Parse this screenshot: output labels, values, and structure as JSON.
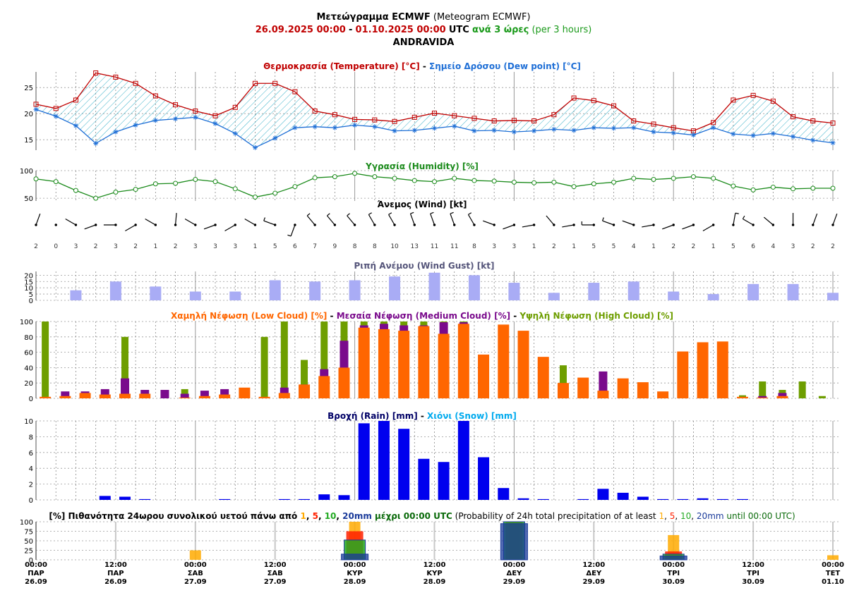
{
  "header": {
    "title_bold": "Μετεώγραμμα ECMWF",
    "title_norm": "(Meteogram ECMWF)",
    "start": "26.09.2025 00:00",
    "dash": "-",
    "end": "01.10.2025 00:00",
    "utc": "UTC",
    "step_bold": "ανά 3 ώρες",
    "step_norm": "(per 3 hours)",
    "location": "ANDRAVIDA"
  },
  "colors": {
    "temp": "#c00000",
    "dew": "#1f6fd6",
    "hum": "#1a8a1a",
    "gust": "#a9acf5",
    "low": "#ff6600",
    "mid": "#7a0a8c",
    "high": "#6e9e00",
    "rain": "#0000ee",
    "snow": "#00aaee",
    "p1": "#ffaa00",
    "p5": "#ff2000",
    "p10": "#22aa22",
    "p20": "#1a3a9a",
    "navy": "#000066"
  },
  "titles": {
    "temp_a": "Θερμοκρασία (Temperature) [°C]",
    "temp_sep": " - ",
    "temp_b": "Σημείο Δρόσου (Dew point) [°C]",
    "hum": "Υγρασία (Humidity) [%]",
    "wind": "Άνεμος (Wind) [kt]",
    "gust": "Ριπή Ανέμου (Wind Gust) [kt]",
    "cloud_low": "Χαμηλή Νέφωση (Low Cloud) [%]",
    "cloud_mid": "Μεσαία Νέφωση (Medium Cloud) [%]",
    "cloud_high": "Υψηλή Νέφωση (High Cloud) [%]",
    "sep": " - ",
    "rain": "Βροχή (Rain) [mm]",
    "snow": "Χιόνι (Snow) [mm]",
    "prob_a": "[%] Πιθανότητα 24ωρου συνολικού υετού πάνω από ",
    "prob_1": "1",
    "prob_c": ", ",
    "prob_5": "5",
    "prob_10": "10",
    "prob_20": "20mm",
    "prob_b": " μέχρι 00:00 UTC",
    "prob_en": " (Probability of 24h total precipitation of at least ",
    "prob_en2": " until 00:00 UTC)"
  },
  "chart_data": [
    {
      "type": "line",
      "name": "temperature",
      "ylim": [
        13,
        28
      ],
      "yticks": [
        15,
        20,
        25
      ],
      "series": [
        {
          "name": "Θερμοκρασία (Temperature)",
          "values": [
            21.8,
            21.0,
            22.6,
            27.8,
            27.0,
            25.8,
            23.4,
            21.7,
            20.5,
            19.6,
            21.2,
            25.8,
            25.8,
            24.2,
            20.5,
            19.8,
            18.9,
            18.8,
            18.5,
            19.3,
            20.1,
            19.6,
            19.1,
            18.6,
            18.7,
            18.6,
            19.8,
            23.0,
            22.5,
            21.5,
            18.6,
            18.0,
            17.3,
            16.7,
            18.3,
            22.6,
            23.5,
            22.4,
            19.4,
            18.6,
            18.2
          ]
        },
        {
          "name": "Σημείο Δρόσου (Dew point)",
          "values": [
            20.8,
            19.5,
            17.7,
            14.3,
            16.5,
            17.8,
            18.7,
            19.0,
            19.3,
            18.1,
            16.2,
            13.5,
            15.3,
            17.3,
            17.5,
            17.3,
            17.8,
            17.5,
            16.7,
            16.8,
            17.2,
            17.6,
            16.7,
            16.8,
            16.5,
            16.7,
            17.0,
            16.8,
            17.3,
            17.2,
            17.3,
            16.5,
            16.3,
            15.9,
            17.3,
            16.1,
            15.8,
            16.2,
            15.6,
            14.9,
            14.4
          ]
        }
      ]
    },
    {
      "type": "line",
      "name": "humidity",
      "ylim": [
        45,
        100
      ],
      "yticks": [
        50,
        100
      ],
      "series": [
        {
          "name": "Υγρασία (Humidity)",
          "values": [
            85,
            80,
            64,
            50,
            61,
            66,
            76,
            77,
            84,
            80,
            67,
            52,
            59,
            71,
            87,
            89,
            95,
            89,
            86,
            82,
            80,
            86,
            82,
            81,
            79,
            78,
            79,
            71,
            76,
            79,
            86,
            84,
            86,
            89,
            86,
            72,
            65,
            70,
            67,
            68,
            68
          ]
        }
      ]
    },
    {
      "type": "table",
      "name": "wind_speed_kt",
      "values": [
        2,
        0,
        3,
        2,
        3,
        2,
        1,
        2,
        3,
        3,
        3,
        1,
        5,
        6,
        7,
        9,
        8,
        8,
        10,
        13,
        11,
        11,
        8,
        3,
        3,
        1,
        2,
        1,
        5,
        5,
        4,
        1,
        2,
        2,
        1,
        5,
        6,
        4,
        3,
        2,
        2
      ],
      "direction_deg": [
        20,
        0,
        300,
        250,
        270,
        240,
        300,
        5,
        300,
        250,
        240,
        300,
        290,
        200,
        320,
        320,
        320,
        330,
        330,
        340,
        340,
        340,
        330,
        290,
        250,
        260,
        320,
        260,
        270,
        290,
        290,
        260,
        250,
        250,
        240,
        10,
        300,
        310,
        0,
        20,
        20
      ]
    },
    {
      "type": "bar",
      "name": "wind_gust",
      "ylim": [
        0,
        23
      ],
      "yticks": [
        0,
        5,
        10,
        15,
        20
      ],
      "series": [
        {
          "name": "Ριπή Ανέμου (Wind Gust)",
          "values": [
            8,
            15,
            11,
            7,
            7,
            16,
            15,
            16,
            19,
            22,
            20,
            14,
            6,
            14,
            15,
            7,
            5,
            13,
            13,
            6
          ]
        }
      ]
    },
    {
      "type": "bar",
      "name": "cloud",
      "ylim": [
        0,
        100
      ],
      "yticks": [
        0,
        20,
        40,
        60,
        80,
        100
      ],
      "series": [
        {
          "name": "Χαμηλή Νέφωση (Low Cloud)",
          "values": [
            2,
            3,
            7,
            5,
            6,
            6,
            0,
            1,
            3,
            5,
            14,
            2,
            7,
            18,
            29,
            40,
            92,
            90,
            88,
            94,
            84,
            97,
            57,
            96,
            88,
            54,
            20,
            27,
            10,
            26,
            21,
            9,
            61,
            73,
            74,
            2,
            1,
            3,
            0,
            0
          ]
        },
        {
          "name": "Μεσαία Νέφωση (Medium Cloud)",
          "values": [
            0,
            9,
            9,
            12,
            26,
            11,
            11,
            6,
            10,
            12,
            0,
            0,
            14,
            18,
            38,
            75,
            95,
            97,
            95,
            95,
            99,
            99,
            0,
            0,
            0,
            0,
            0,
            0,
            35,
            0,
            0,
            0,
            0,
            0,
            0,
            0,
            3,
            7,
            0,
            0
          ]
        },
        {
          "name": "Υψηλή Νέφωση (High Cloud)",
          "values": [
            100,
            0,
            0,
            0,
            80,
            0,
            0,
            12,
            0,
            0,
            0,
            80,
            100,
            50,
            100,
            100,
            100,
            100,
            100,
            100,
            100,
            100,
            0,
            0,
            0,
            0,
            43,
            0,
            0,
            0,
            0,
            0,
            0,
            0,
            0,
            4,
            22,
            11,
            22,
            3
          ]
        }
      ]
    },
    {
      "type": "bar",
      "name": "precipitation",
      "ylim": [
        0,
        10
      ],
      "yticks": [
        0,
        2,
        4,
        6,
        8,
        10
      ],
      "series": [
        {
          "name": "Βροχή (Rain)",
          "values": [
            0,
            0,
            0,
            0.5,
            0.4,
            0.1,
            0,
            0,
            0,
            0.1,
            0,
            0,
            0.1,
            0.1,
            0.7,
            0.6,
            9.7,
            10,
            9,
            5.2,
            4.8,
            10,
            5.4,
            1.5,
            0.2,
            0.1,
            0,
            0.1,
            1.4,
            0.9,
            0.4,
            0.1,
            0.1,
            0.2,
            0.1,
            0.1,
            0,
            0,
            0,
            0
          ]
        },
        {
          "name": "Χιόνι (Snow)",
          "values": [
            0,
            0,
            0,
            0,
            0,
            0,
            0,
            0,
            0,
            0,
            0,
            0,
            0,
            0,
            0,
            0,
            0,
            0,
            0,
            0,
            0,
            0,
            0,
            0,
            0,
            0,
            0,
            0,
            0,
            0,
            0,
            0,
            0,
            0,
            0,
            0,
            0,
            0,
            0,
            0
          ]
        }
      ]
    },
    {
      "type": "bar",
      "name": "precip_probability",
      "ylim": [
        0,
        100
      ],
      "yticks": [
        0,
        25,
        50,
        75,
        100
      ],
      "categories": [
        "26.09 12:00",
        "27.09 00:00",
        "27.09 12:00",
        "28.09 00:00",
        "28.09 12:00",
        "29.09 00:00",
        "29.09 12:00",
        "30.09 00:00",
        "30.09 12:00",
        "01.10 00:00"
      ],
      "series": [
        {
          "name": "1",
          "values": [
            0,
            25,
            0,
            100,
            0,
            100,
            0,
            65,
            0,
            12
          ]
        },
        {
          "name": "5",
          "values": [
            0,
            0,
            0,
            75,
            0,
            100,
            0,
            22,
            0,
            0
          ]
        },
        {
          "name": "10",
          "values": [
            0,
            0,
            0,
            52,
            0,
            100,
            0,
            15,
            0,
            0
          ]
        },
        {
          "name": "20mm",
          "values": [
            0,
            0,
            0,
            15,
            0,
            95,
            0,
            10,
            0,
            0
          ]
        }
      ]
    }
  ],
  "xaxis": [
    {
      "time": "00:00",
      "day": "ΠΑΡ",
      "date": "26.09"
    },
    {
      "time": "12:00",
      "day": "ΠΑΡ",
      "date": "26.09"
    },
    {
      "time": "00:00",
      "day": "ΣΑΒ",
      "date": "27.09"
    },
    {
      "time": "12:00",
      "day": "ΣΑΒ",
      "date": "27.09"
    },
    {
      "time": "00:00",
      "day": "ΚΥΡ",
      "date": "28.09"
    },
    {
      "time": "12:00",
      "day": "ΚΥΡ",
      "date": "28.09"
    },
    {
      "time": "00:00",
      "day": "ΔΕΥ",
      "date": "29.09"
    },
    {
      "time": "12:00",
      "day": "ΔΕΥ",
      "date": "29.09"
    },
    {
      "time": "00:00",
      "day": "ΤΡΙ",
      "date": "30.09"
    },
    {
      "time": "12:00",
      "day": "ΤΡΙ",
      "date": "30.09"
    },
    {
      "time": "00:00",
      "day": "ΤΕΤ",
      "date": "01.10"
    }
  ]
}
